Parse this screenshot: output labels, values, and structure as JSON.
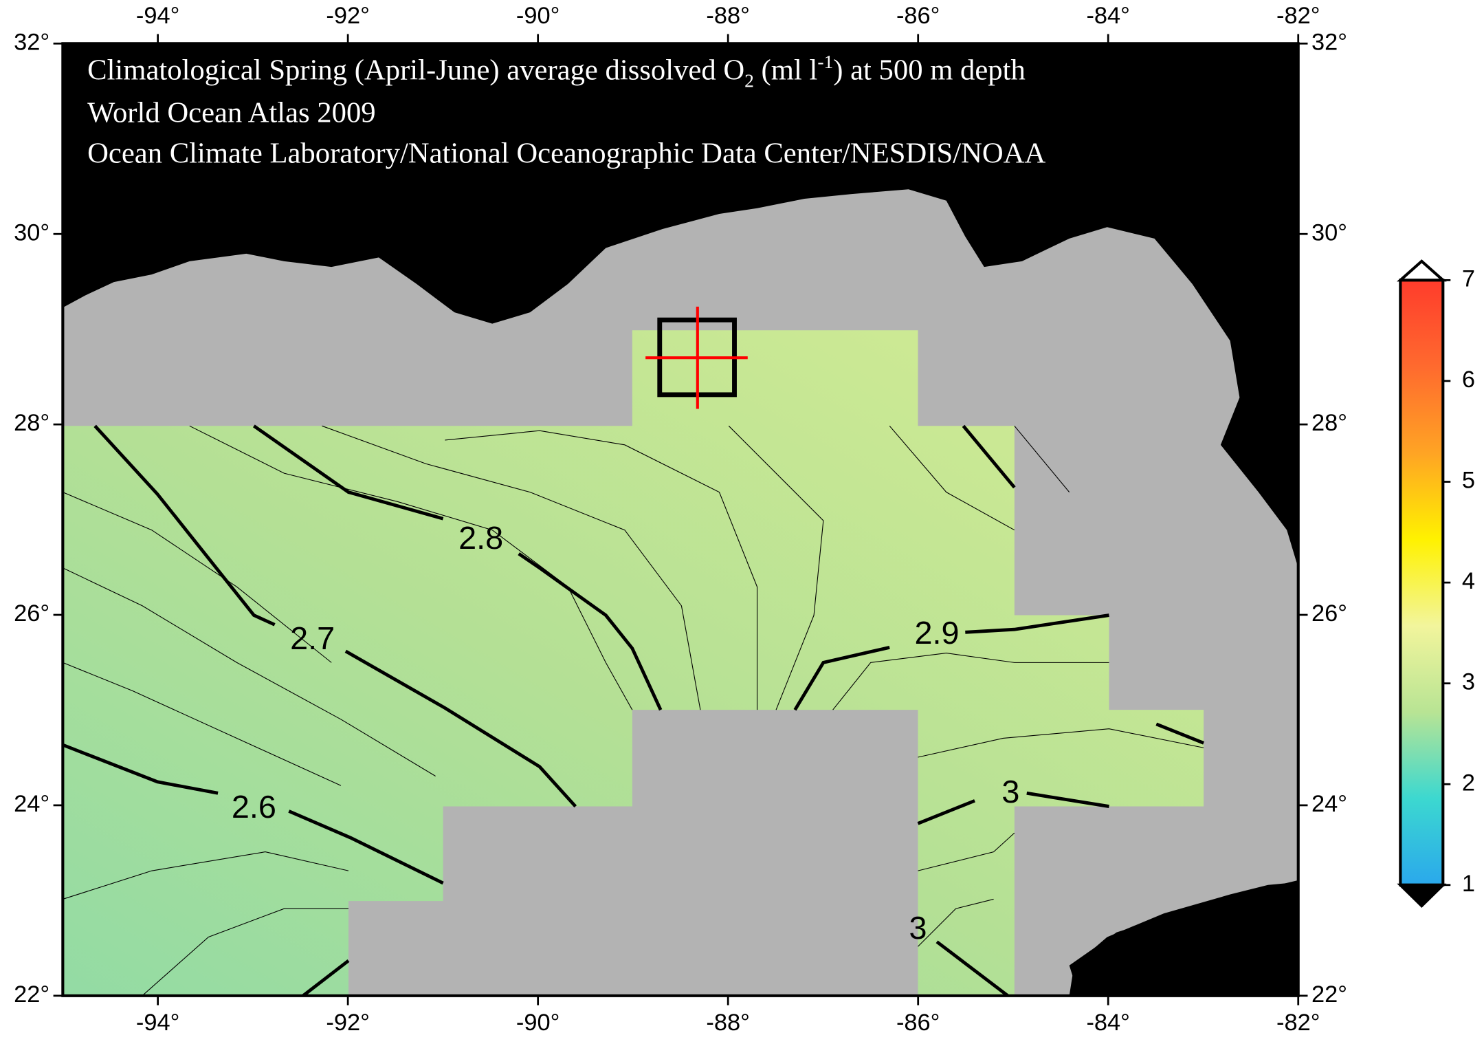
{
  "title": [
    "Climatological Spring (April-June) average dissolved O",
    "2",
    " (ml l",
    "-1",
    ") at 500 m depth"
  ],
  "subtitle_lines": [
    "World Ocean Atlas 2009",
    "Ocean Climate Laboratory/National Oceanographic Data Center/NESDIS/NOAA"
  ],
  "map": {
    "lon_range": [
      -95,
      -82
    ],
    "lat_range": [
      22,
      32
    ],
    "lon_ticks": [
      {
        "value": -94,
        "label": "-94°"
      },
      {
        "value": -92,
        "label": "-92°"
      },
      {
        "value": -90,
        "label": "-90°"
      },
      {
        "value": -88,
        "label": "-88°"
      },
      {
        "value": -86,
        "label": "-86°"
      },
      {
        "value": -84,
        "label": "-84°"
      },
      {
        "value": -82,
        "label": "-82°"
      }
    ],
    "lat_ticks": [
      {
        "value": 22,
        "label": "22°"
      },
      {
        "value": 24,
        "label": "24°"
      },
      {
        "value": 26,
        "label": "26°"
      },
      {
        "value": 28,
        "label": "28°"
      },
      {
        "value": 30,
        "label": "30°"
      },
      {
        "value": 32,
        "label": "32°"
      }
    ],
    "contour_labels": [
      2.8,
      2.7,
      2.6,
      2.9,
      3,
      3
    ]
  },
  "colorbar": {
    "range": [
      1,
      7
    ],
    "ticks": [
      1,
      2,
      3,
      4,
      5,
      6,
      7
    ],
    "colors": [
      "#2aa8ec",
      "#3cd8d0",
      "#b8e494",
      "#f2f59c",
      "#fff200",
      "#ffa424",
      "#ff6a2e",
      "#ff3c2c"
    ]
  }
}
